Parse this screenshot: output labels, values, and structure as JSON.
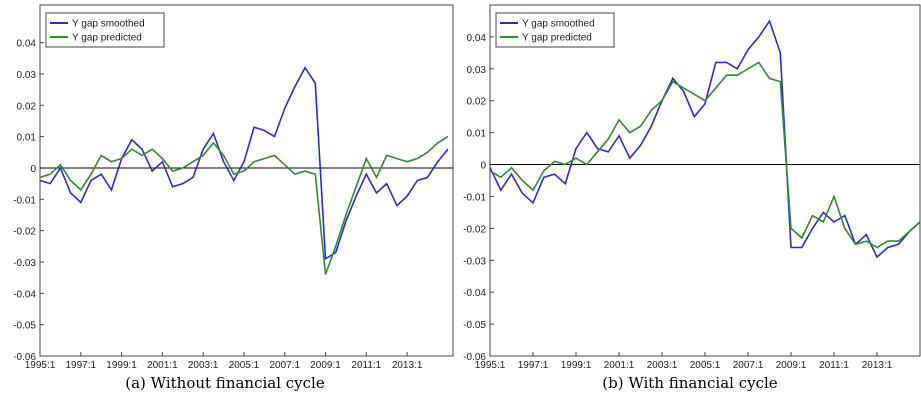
{
  "chart_data": [
    {
      "type": "line",
      "caption": "(a) Without financial cycle",
      "x": [
        1995.0,
        1995.5,
        1996.0,
        1996.5,
        1997.0,
        1997.5,
        1998.0,
        1998.5,
        1999.0,
        1999.5,
        2000.0,
        2000.5,
        2001.0,
        2001.5,
        2002.0,
        2002.5,
        2003.0,
        2003.5,
        2004.0,
        2004.5,
        2005.0,
        2005.5,
        2006.0,
        2006.5,
        2007.0,
        2007.5,
        2008.0,
        2008.5,
        2009.0,
        2009.5,
        2010.0,
        2010.5,
        2011.0,
        2011.5,
        2012.0,
        2012.5,
        2013.0,
        2013.5,
        2014.0,
        2014.5,
        2015.0
      ],
      "series": [
        {
          "name": "Y gap smoothed",
          "color": "#2b2bd9",
          "values": [
            -0.004,
            -0.005,
            0.0,
            -0.008,
            -0.011,
            -0.004,
            -0.002,
            -0.007,
            0.003,
            0.009,
            0.006,
            -0.001,
            0.002,
            -0.006,
            -0.005,
            -0.003,
            0.006,
            0.011,
            0.002,
            -0.004,
            0.002,
            0.013,
            0.012,
            0.01,
            0.019,
            0.026,
            0.032,
            0.027,
            -0.029,
            -0.027,
            -0.017,
            -0.009,
            -0.002,
            -0.008,
            -0.005,
            -0.012,
            -0.009,
            -0.004,
            -0.003,
            0.002,
            0.006
          ]
        },
        {
          "name": "Y gap predicted",
          "color": "#2e8b2e",
          "values": [
            -0.003,
            -0.002,
            0.001,
            -0.004,
            -0.007,
            -0.002,
            0.004,
            0.002,
            0.003,
            0.006,
            0.004,
            0.006,
            0.003,
            -0.001,
            0.0,
            0.002,
            0.004,
            0.008,
            0.004,
            -0.002,
            -0.001,
            0.002,
            0.003,
            0.004,
            0.001,
            -0.002,
            -0.001,
            -0.002,
            -0.034,
            -0.025,
            -0.015,
            -0.006,
            0.003,
            -0.003,
            0.004,
            0.003,
            0.002,
            0.003,
            0.005,
            0.008,
            0.01
          ]
        }
      ],
      "xlim": [
        1995.0,
        2015.25
      ],
      "xticks": [
        {
          "value": 1995,
          "label": "1995:1"
        },
        {
          "value": 1997,
          "label": "1997:1"
        },
        {
          "value": 1999,
          "label": "1999:1"
        },
        {
          "value": 2001,
          "label": "2001:1"
        },
        {
          "value": 2003,
          "label": "2003:1"
        },
        {
          "value": 2005,
          "label": "2005:1"
        },
        {
          "value": 2007,
          "label": "2007:1"
        },
        {
          "value": 2009,
          "label": "2009:1"
        },
        {
          "value": 2011,
          "label": "2011:1"
        },
        {
          "value": 2013,
          "label": "2013:1"
        }
      ],
      "ylim": [
        -0.06,
        0.052
      ],
      "yticks": [
        -0.06,
        -0.05,
        -0.04,
        -0.03,
        -0.02,
        -0.01,
        0,
        0.01,
        0.02,
        0.03,
        0.04
      ],
      "hline": 0,
      "legend": "upper left"
    },
    {
      "type": "line",
      "caption": "(b) With financial cycle",
      "x": [
        1995.0,
        1995.5,
        1996.0,
        1996.5,
        1997.0,
        1997.5,
        1998.0,
        1998.5,
        1999.0,
        1999.5,
        2000.0,
        2000.5,
        2001.0,
        2001.5,
        2002.0,
        2002.5,
        2003.0,
        2003.5,
        2004.0,
        2004.5,
        2005.0,
        2005.5,
        2006.0,
        2006.5,
        2007.0,
        2007.5,
        2008.0,
        2008.5,
        2009.0,
        2009.5,
        2010.0,
        2010.5,
        2011.0,
        2011.5,
        2012.0,
        2012.5,
        2013.0,
        2013.5,
        2014.0,
        2014.5,
        2015.0
      ],
      "series": [
        {
          "name": "Y gap smoothed",
          "color": "#2b2bd9",
          "values": [
            -0.001,
            -0.008,
            -0.003,
            -0.009,
            -0.012,
            -0.004,
            -0.003,
            -0.006,
            0.005,
            0.01,
            0.005,
            0.004,
            0.009,
            0.002,
            0.006,
            0.012,
            0.02,
            0.027,
            0.023,
            0.015,
            0.019,
            0.032,
            0.032,
            0.03,
            0.036,
            0.04,
            0.045,
            0.035,
            -0.026,
            -0.026,
            -0.02,
            -0.015,
            -0.018,
            -0.016,
            -0.025,
            -0.022,
            -0.029,
            -0.026,
            -0.025,
            -0.021,
            -0.018
          ]
        },
        {
          "name": "Y gap predicted",
          "color": "#2e8b2e",
          "values": [
            -0.002,
            -0.004,
            -0.001,
            -0.005,
            -0.008,
            -0.002,
            0.001,
            0.0,
            0.002,
            0.0,
            0.004,
            0.008,
            0.014,
            0.01,
            0.012,
            0.017,
            0.02,
            0.026,
            0.024,
            0.022,
            0.02,
            0.024,
            0.028,
            0.028,
            0.03,
            0.032,
            0.027,
            0.026,
            -0.02,
            -0.023,
            -0.016,
            -0.018,
            -0.01,
            -0.02,
            -0.025,
            -0.024,
            -0.026,
            -0.024,
            -0.024,
            -0.021,
            -0.018
          ]
        }
      ],
      "xlim": [
        1995.0,
        2015.0
      ],
      "xticks": [
        {
          "value": 1995,
          "label": "1995:1"
        },
        {
          "value": 1997,
          "label": "1997:1"
        },
        {
          "value": 1999,
          "label": "1999:1"
        },
        {
          "value": 2001,
          "label": "2001:1"
        },
        {
          "value": 2003,
          "label": "2003:1"
        },
        {
          "value": 2005,
          "label": "2005:1"
        },
        {
          "value": 2007,
          "label": "2007:1"
        },
        {
          "value": 2009,
          "label": "2009:1"
        },
        {
          "value": 2011,
          "label": "2011:1"
        },
        {
          "value": 2013,
          "label": "2013:1"
        }
      ],
      "ylim": [
        -0.06,
        0.05
      ],
      "yticks": [
        -0.06,
        -0.05,
        -0.04,
        -0.03,
        -0.02,
        -0.01,
        0,
        0.01,
        0.02,
        0.03,
        0.04
      ],
      "hline": 0,
      "legend": "upper left"
    }
  ]
}
